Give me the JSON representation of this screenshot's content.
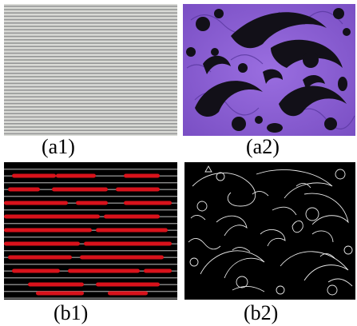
{
  "figure": {
    "panels": [
      {
        "id": "a1",
        "label": "(a1)",
        "content": "grey fabric photo with fine horizontal stripes"
      },
      {
        "id": "a2",
        "label": "(a2)",
        "content": "purple fabric photo with black paisley print"
      },
      {
        "id": "b1",
        "label": "(b1)",
        "content": "stripe segmentation: red regions on black"
      },
      {
        "id": "b2",
        "label": "(b2)",
        "content": "edge map: white outlines on black"
      }
    ]
  }
}
